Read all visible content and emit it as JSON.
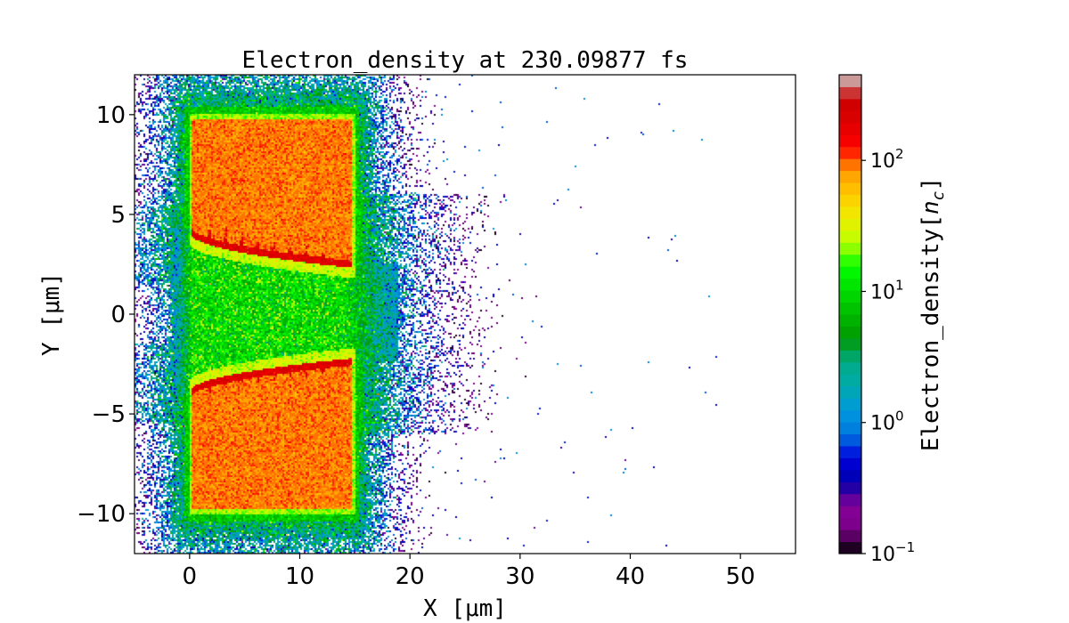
{
  "chart_data": {
    "type": "heatmap",
    "title": "Electron_density at 230.09877 fs",
    "xlabel": "X [μm]",
    "ylabel": "Y [μm]",
    "xlim": [
      -5,
      55
    ],
    "ylim": [
      -12,
      12
    ],
    "xticks": [
      0,
      10,
      20,
      30,
      40,
      50
    ],
    "xtick_labels": [
      "0",
      "10",
      "20",
      "30",
      "40",
      "50"
    ],
    "yticks": [
      -10,
      -5,
      0,
      5,
      10
    ],
    "ytick_labels": [
      "−10",
      "−5",
      "0",
      "5",
      "10"
    ],
    "grid": false,
    "colormap": "nipy_spectral (discrete, 40 levels)",
    "colorbar": {
      "label": "Electron_density[n_c]",
      "scale": "log",
      "range": [
        0.1,
        450
      ],
      "ticks": [
        0.1,
        1,
        10,
        100
      ],
      "tick_labels": [
        {
          "base": "10",
          "exp": "−1"
        },
        {
          "base": "10",
          "exp": "0"
        },
        {
          "base": "10",
          "exp": "1"
        },
        {
          "base": "10",
          "exp": "2"
        }
      ],
      "levels": 40
    },
    "features": [
      {
        "name": "upper target slab",
        "x": [
          0,
          15
        ],
        "y": [
          2.3,
          10
        ],
        "density": 90
      },
      {
        "name": "lower target slab",
        "x": [
          0,
          15
        ],
        "y": [
          -10,
          -2.2
        ],
        "density": 90
      },
      {
        "name": "compressed inner edges",
        "density": 200
      },
      {
        "name": "channel plasma",
        "x": [
          -1,
          19
        ],
        "y": [
          -4,
          4
        ],
        "density": 10
      },
      {
        "name": "expanding halo",
        "x": [
          -5,
          25
        ],
        "density": 1
      },
      {
        "name": "sparse electrons",
        "x": [
          20,
          47
        ],
        "density": 0.3
      }
    ]
  }
}
